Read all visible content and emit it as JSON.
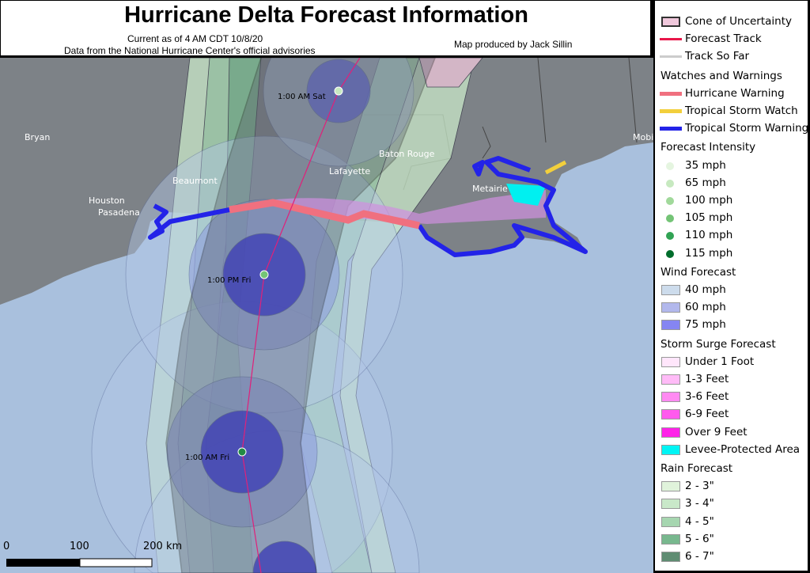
{
  "header": {
    "title": "Hurricane Delta Forecast Information",
    "current_as_of": "Current as of 4 AM CDT 10/8/20",
    "data_source": "Data from the National Hurricane Center's official advisories",
    "credit": "Map produced by Jack Sillin"
  },
  "map": {
    "cities": [
      "Bryan",
      "Beaumont",
      "Houston",
      "Pasadena",
      "Lafayette",
      "Baton Rouge",
      "Metairie",
      "Mobi"
    ],
    "forecast_points": [
      {
        "label": "1:00 AM Sat",
        "intensity_color": "#c7e9c0"
      },
      {
        "label": "1:00 PM Fri",
        "intensity_color": "#74c476"
      },
      {
        "label": "1:00 AM Fri",
        "intensity_color": "#238b45"
      }
    ],
    "scale_bar": {
      "labels": [
        "0",
        "100",
        "200 km"
      ]
    }
  },
  "legend": {
    "track": [
      {
        "label": "Cone of Uncertainty",
        "color": "#f0c8dc"
      },
      {
        "label": "Forecast Track",
        "color": "#e8174a"
      },
      {
        "label": "Track So Far",
        "color": "#cccccc"
      }
    ],
    "watches_title": "Watches and Warnings",
    "watches": [
      {
        "label": "Hurricane Warning",
        "color": "#f0707f"
      },
      {
        "label": "Tropical Storm Watch",
        "color": "#f2cf3c"
      },
      {
        "label": "Tropical Storm Warning",
        "color": "#2323e8"
      }
    ],
    "intensity_title": "Forecast Intensity",
    "intensity": [
      {
        "label": "35 mph",
        "color": "#e5f5e0"
      },
      {
        "label": "65 mph",
        "color": "#c7e9c0"
      },
      {
        "label": "100 mph",
        "color": "#a1d99b"
      },
      {
        "label": "105 mph",
        "color": "#74c476"
      },
      {
        "label": "110 mph",
        "color": "#31a354"
      },
      {
        "label": "115 mph",
        "color": "#006d2c"
      }
    ],
    "wind_title": "Wind Forecast",
    "wind": [
      {
        "label": "40 mph",
        "color": "#cddcec"
      },
      {
        "label": "60 mph",
        "color": "#b2b8ec"
      },
      {
        "label": "75 mph",
        "color": "#8585f2"
      }
    ],
    "surge_title": "Storm Surge Forecast",
    "surge": [
      {
        "label": "Under 1 Foot",
        "color": "#ffe6fb"
      },
      {
        "label": "1-3 Feet",
        "color": "#ffbbf7"
      },
      {
        "label": "3-6 Feet",
        "color": "#ff8af2"
      },
      {
        "label": "6-9 Feet",
        "color": "#ff5aee"
      },
      {
        "label": "Over 9 Feet",
        "color": "#ff22e8"
      },
      {
        "label": "Levee-Protected Area",
        "color": "#00f5f5"
      }
    ],
    "rain_title": "Rain Forecast",
    "rain": [
      {
        "label": "2 - 3\"",
        "color": "#e0f3db"
      },
      {
        "label": "3 - 4\"",
        "color": "#c9e8c9"
      },
      {
        "label": "4 - 5\"",
        "color": "#a6d6b0"
      },
      {
        "label": "5 - 6\"",
        "color": "#78b88e"
      },
      {
        "label": "6 - 7\"",
        "color": "#5f8c72"
      }
    ]
  }
}
